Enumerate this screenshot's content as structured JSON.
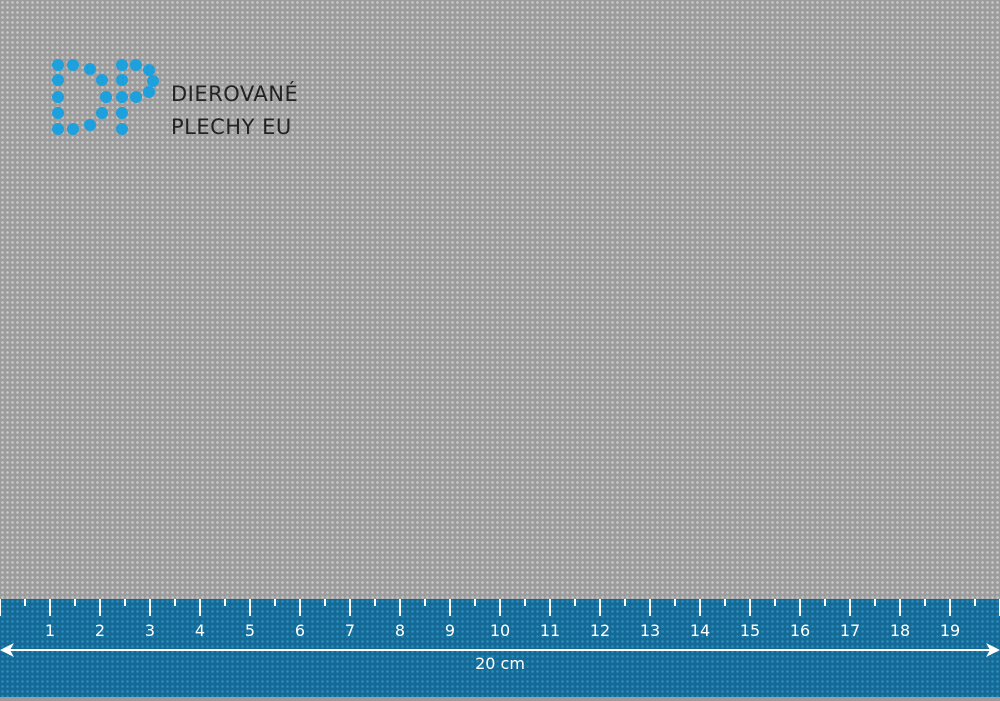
{
  "brand": {
    "name_line1": "DIEROVANÉ",
    "name_line2": "PLECHY EU",
    "logo_letters": "DP",
    "logo_color": "#1ea0dd"
  },
  "ruler": {
    "unit": "cm",
    "labels": [
      "1",
      "2",
      "3",
      "4",
      "5",
      "6",
      "7",
      "8",
      "9",
      "10",
      "11",
      "12",
      "13",
      "14",
      "15",
      "16",
      "17",
      "18",
      "19"
    ],
    "total_label": "20 cm",
    "color": "#156a95"
  }
}
